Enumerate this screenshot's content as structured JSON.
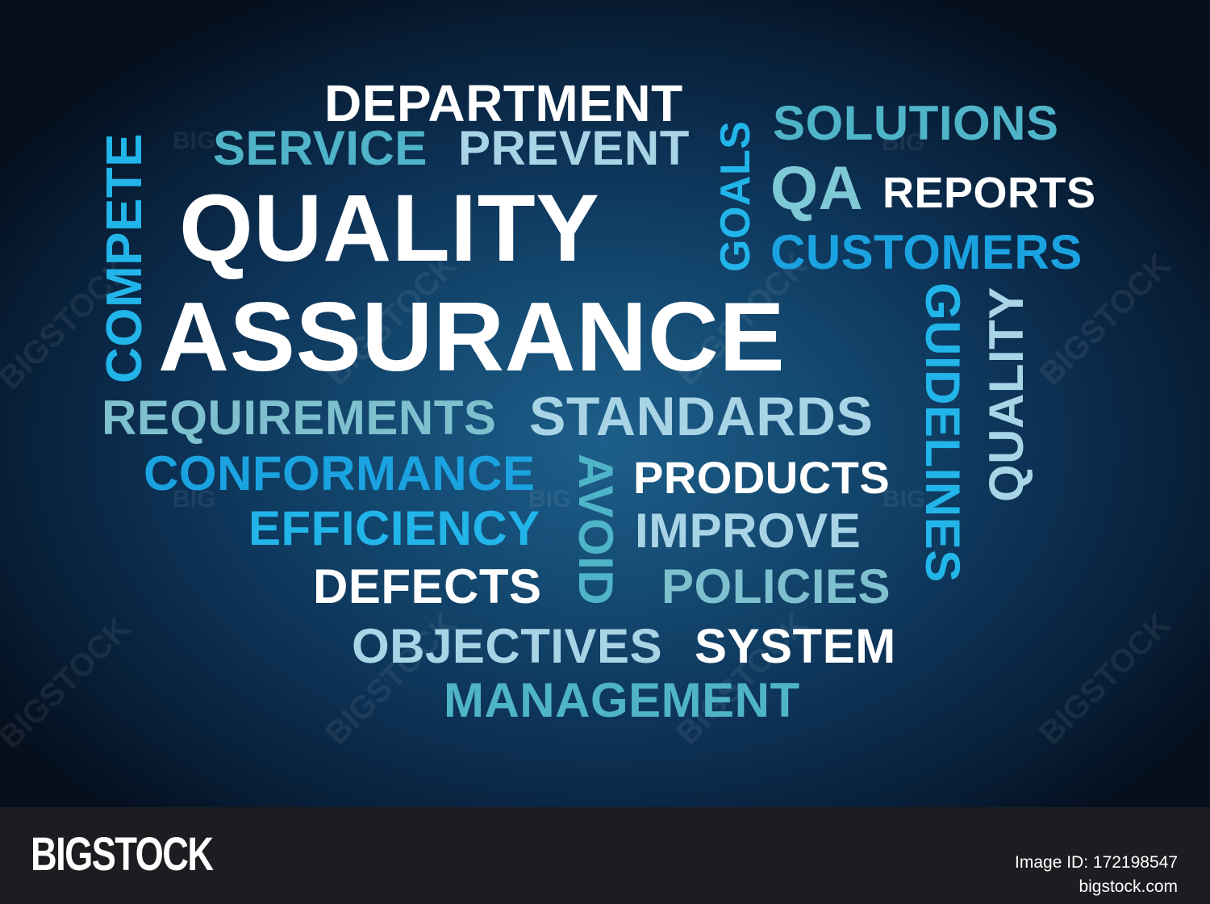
{
  "words": {
    "department": "DEPARTMENT",
    "service": "SERVICE",
    "prevent": "PREVENT",
    "solutions": "SOLUTIONS",
    "qa": "QA",
    "reports": "REPORTS",
    "compete": "COMPETE",
    "quality_main": "QUALITY",
    "goals": "GOALS",
    "customers": "CUSTOMERS",
    "assurance": "ASSURANCE",
    "guidelines": "GUIDELINES",
    "quality_side": "QUALITY",
    "requirements": "REQUIREMENTS",
    "standards": "STANDARDS",
    "conformance": "CONFORMANCE",
    "avoid": "AVOID",
    "products": "PRODUCTS",
    "efficiency": "EFFICIENCY",
    "improve": "IMPROVE",
    "defects": "DEFECTS",
    "policies": "POLICIES",
    "objectives": "OBJECTIVES",
    "system": "SYSTEM",
    "management": "MANAGEMENT"
  },
  "colors": {
    "white": "#ffffff",
    "pale_blue": "#a9d4e6",
    "teal": "#4fb4c8",
    "bright_blue": "#1aa3e0",
    "sky": "#22b5ea"
  },
  "watermark": {
    "big": "BIG",
    "bigstock": "BIGSTOCK"
  },
  "footer": {
    "logo": "BIGSTOCK",
    "image_id": "Image ID: 172198547",
    "site": "bigstock.com"
  }
}
